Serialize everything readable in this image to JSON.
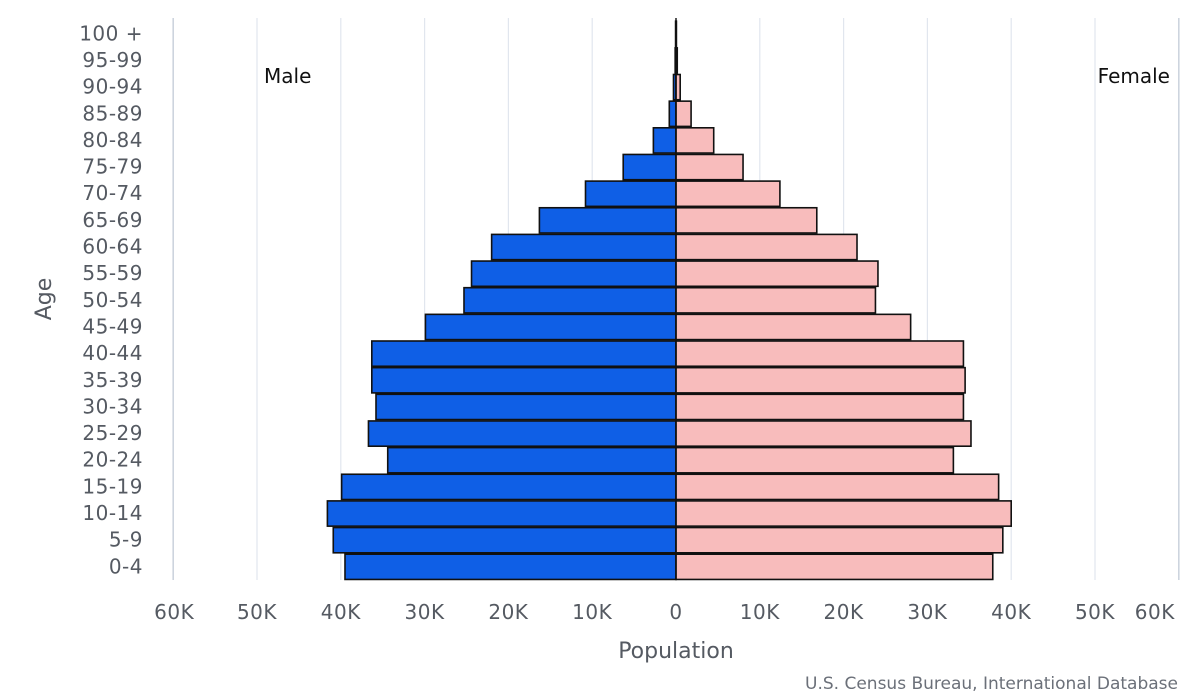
{
  "chart_data": {
    "type": "bar",
    "orientation": "horizontal-population-pyramid",
    "categories": [
      "100 +",
      "95-99",
      "90-94",
      "85-89",
      "80-84",
      "75-79",
      "70-74",
      "65-69",
      "60-64",
      "55-59",
      "50-54",
      "45-49",
      "40-44",
      "35-39",
      "30-34",
      "25-29",
      "20-24",
      "15-19",
      "10-14",
      "5-9",
      "0-4"
    ],
    "series": [
      {
        "name": "Male",
        "color": "#0f5fe6",
        "values": [
          50,
          100,
          300,
          800,
          2700,
          6300,
          10800,
          16300,
          22000,
          24400,
          25300,
          29900,
          36300,
          36300,
          35800,
          36700,
          34400,
          39900,
          41600,
          40900,
          39500
        ]
      },
      {
        "name": "Female",
        "color": "#f8bcbc",
        "values": [
          50,
          150,
          500,
          1800,
          4500,
          8000,
          12400,
          16800,
          21600,
          24100,
          23800,
          28000,
          34300,
          34500,
          34300,
          35200,
          33100,
          38500,
          40000,
          39000,
          37800
        ]
      }
    ],
    "xlabel": "Population",
    "ylabel": "Age",
    "xlim": [
      -60000,
      60000
    ],
    "x_ticks": [
      "60K",
      "50K",
      "40K",
      "30K",
      "20K",
      "10K",
      "0",
      "10K",
      "20K",
      "30K",
      "40K",
      "50K",
      "60K"
    ],
    "legend": {
      "left": "Male",
      "right": "Female"
    },
    "grid": true,
    "source": "U.S. Census Bureau, International Database"
  }
}
